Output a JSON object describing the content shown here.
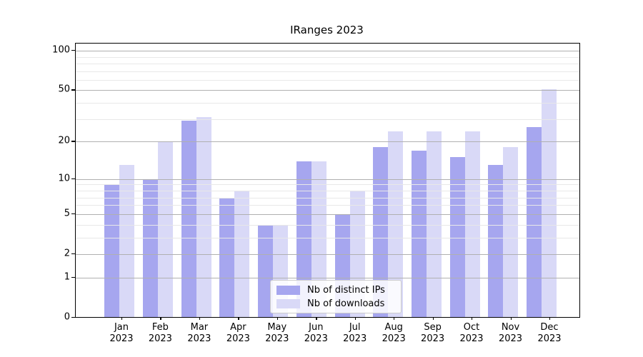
{
  "title": "IRanges 2023",
  "colors": {
    "distinct_ips_bar": "#a6a6ef",
    "downloads_bar": "#d9d9f7",
    "grid_major": "#b0b0b0",
    "grid_minor": "#e8e8e8",
    "axis": "#000000"
  },
  "legend": {
    "items": [
      {
        "label": "Nb of distinct IPs",
        "color_key": "distinct_ips_bar"
      },
      {
        "label": "Nb of downloads",
        "color_key": "downloads_bar"
      }
    ]
  },
  "y_axis": {
    "major_ticks": [
      0,
      1,
      2,
      5,
      10,
      20,
      50,
      100
    ],
    "minor_ticks": [
      3,
      4,
      6,
      7,
      8,
      9,
      30,
      40,
      60,
      70,
      80,
      90
    ],
    "scale": "log1p"
  },
  "x_axis": {
    "tick_line2": "2023"
  },
  "chart_data": {
    "type": "bar",
    "title": "IRanges 2023",
    "categories": [
      "Jan",
      "Feb",
      "Mar",
      "Apr",
      "May",
      "Jun",
      "Jul",
      "Aug",
      "Sep",
      "Oct",
      "Nov",
      "Dec"
    ],
    "category_year": "2023",
    "series": [
      {
        "name": "Nb of distinct IPs",
        "values": [
          9,
          10,
          29,
          7,
          4,
          14,
          5,
          18,
          17,
          15,
          13,
          26
        ]
      },
      {
        "name": "Nb of downloads",
        "values": [
          13,
          20,
          31,
          8,
          4,
          14,
          8,
          24,
          24,
          24,
          18,
          51
        ]
      }
    ],
    "yscale": "log1p",
    "ylim": [
      0,
      113
    ],
    "grid": true,
    "legend_position": "lower-center"
  }
}
